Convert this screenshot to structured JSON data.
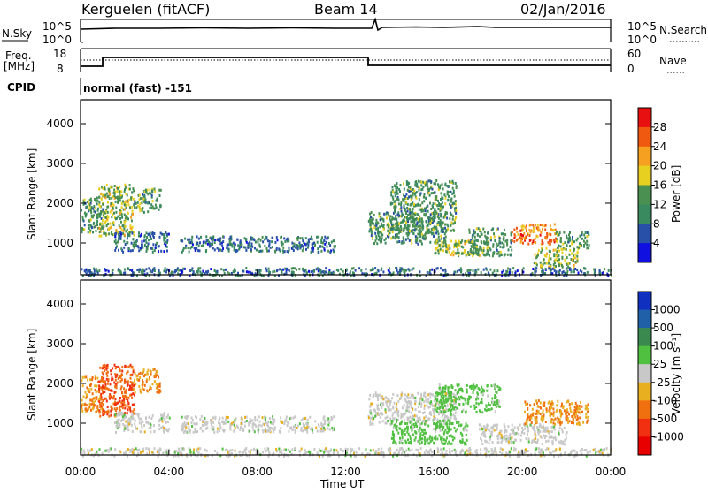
{
  "header": {
    "station": "Kerguelen (fitACF)",
    "beam": "Beam 14",
    "date": "02/Jan/2016"
  },
  "nsky_panel": {
    "left_label": "N.Sky",
    "right_label": "N.Search",
    "ticks_left": [
      "10^5",
      "10^0"
    ],
    "ticks_right": [
      "10^5",
      "10^0"
    ]
  },
  "freq_panel": {
    "left_label_1": "Freq.",
    "left_label_2": "[MHz]",
    "right_label": "Nave",
    "ticks_left": [
      "18",
      "8"
    ],
    "ticks_right": [
      "60",
      "0"
    ]
  },
  "cpid": {
    "label": "CPID",
    "text": "normal (fast) -151"
  },
  "x_axis": {
    "title": "Time UT",
    "ticks": [
      "00:00",
      "04:00",
      "08:00",
      "12:00",
      "16:00",
      "20:00",
      "00:00"
    ]
  },
  "power_panel": {
    "ylabel": "Slant Range [km]",
    "cbar_label": "Power [dB]",
    "cbar_ticks": [
      "28",
      "24",
      "20",
      "16",
      "12",
      "8",
      "4"
    ]
  },
  "velocity_panel": {
    "ylabel": "Slant Range [km]",
    "cbar_label": "Velocity [m s⁻¹]",
    "cbar_ticks": [
      "1000",
      "500",
      "100",
      "25",
      "-25",
      "-100",
      "-500",
      "-1000"
    ]
  },
  "chart_data": [
    {
      "type": "heatmap",
      "name": "power",
      "x_range_hours": [
        0,
        24
      ],
      "y_range_km": [
        200,
        4600
      ],
      "yticks": [
        1000,
        2000,
        3000,
        4000
      ],
      "colorbar": {
        "ticks": [
          28,
          24,
          20,
          16,
          12,
          8,
          4
        ],
        "colors": [
          "#e81010",
          "#f05a10",
          "#f5a020",
          "#e8d020",
          "#4a9050",
          "#3a8a60",
          "#2850a8",
          "#1010e0"
        ]
      },
      "regions": [
        {
          "t": [
            0.0,
            1.0
          ],
          "r": [
            1300,
            2200
          ],
          "level": 12
        },
        {
          "t": [
            0.8,
            2.4
          ],
          "r": [
            1200,
            2500
          ],
          "level": 16
        },
        {
          "t": [
            2.4,
            3.6
          ],
          "r": [
            1800,
            2400
          ],
          "level": 12
        },
        {
          "t": [
            1.5,
            4.0
          ],
          "r": [
            800,
            1300
          ],
          "level": 8
        },
        {
          "t": [
            4.5,
            6.5
          ],
          "r": [
            800,
            1200
          ],
          "level": 8
        },
        {
          "t": [
            6.5,
            8.5
          ],
          "r": [
            800,
            1200
          ],
          "level": 8
        },
        {
          "t": [
            8.5,
            11.5
          ],
          "r": [
            800,
            1200
          ],
          "level": 8
        },
        {
          "t": [
            13.0,
            16.5
          ],
          "r": [
            1000,
            1800
          ],
          "level": 12
        },
        {
          "t": [
            14.0,
            17.0
          ],
          "r": [
            1300,
            2600
          ],
          "level": 12
        },
        {
          "t": [
            16.0,
            18.5
          ],
          "r": [
            700,
            1100
          ],
          "level": 16
        },
        {
          "t": [
            17.5,
            19.5
          ],
          "r": [
            700,
            1400
          ],
          "level": 12
        },
        {
          "t": [
            19.5,
            21.5
          ],
          "r": [
            1000,
            1500
          ],
          "level": 24
        },
        {
          "t": [
            20.5,
            22.5
          ],
          "r": [
            400,
            900
          ],
          "level": 16
        },
        {
          "t": [
            21.5,
            23.0
          ],
          "r": [
            900,
            1300
          ],
          "level": 12
        },
        {
          "t": [
            0.0,
            24.0
          ],
          "r": [
            200,
            400
          ],
          "level": 8
        }
      ]
    },
    {
      "type": "heatmap",
      "name": "velocity",
      "x_range_hours": [
        0,
        24
      ],
      "y_range_km": [
        200,
        4600
      ],
      "yticks": [
        1000,
        2000,
        3000,
        4000
      ],
      "colorbar": {
        "ticks": [
          1000,
          500,
          100,
          25,
          -25,
          -100,
          -500,
          -1000
        ],
        "colors": [
          "#1030c0",
          "#2060a8",
          "#3a8a50",
          "#50c040",
          "#c8c8c8",
          "#e8b020",
          "#f07010",
          "#f03010",
          "#e80000"
        ]
      },
      "regions": [
        {
          "t": [
            0.0,
            1.0
          ],
          "r": [
            1300,
            2200
          ],
          "level": -100
        },
        {
          "t": [
            0.8,
            2.4
          ],
          "r": [
            1200,
            2500
          ],
          "level": -500
        },
        {
          "t": [
            2.4,
            3.6
          ],
          "r": [
            1800,
            2400
          ],
          "level": -100
        },
        {
          "t": [
            1.5,
            4.0
          ],
          "r": [
            800,
            1300
          ],
          "level": 0
        },
        {
          "t": [
            4.5,
            11.5
          ],
          "r": [
            800,
            1200
          ],
          "level": 0
        },
        {
          "t": [
            13.0,
            17.0
          ],
          "r": [
            1000,
            1800
          ],
          "level": 0
        },
        {
          "t": [
            14.0,
            17.5
          ],
          "r": [
            500,
            1100
          ],
          "level": 50
        },
        {
          "t": [
            16.0,
            19.0
          ],
          "r": [
            1300,
            2000
          ],
          "level": 50
        },
        {
          "t": [
            18.0,
            22.0
          ],
          "r": [
            500,
            1000
          ],
          "level": 0
        },
        {
          "t": [
            20.0,
            23.0
          ],
          "r": [
            1000,
            1600
          ],
          "level": -100
        },
        {
          "t": [
            0.0,
            24.0
          ],
          "r": [
            200,
            400
          ],
          "level": 0
        }
      ]
    }
  ]
}
